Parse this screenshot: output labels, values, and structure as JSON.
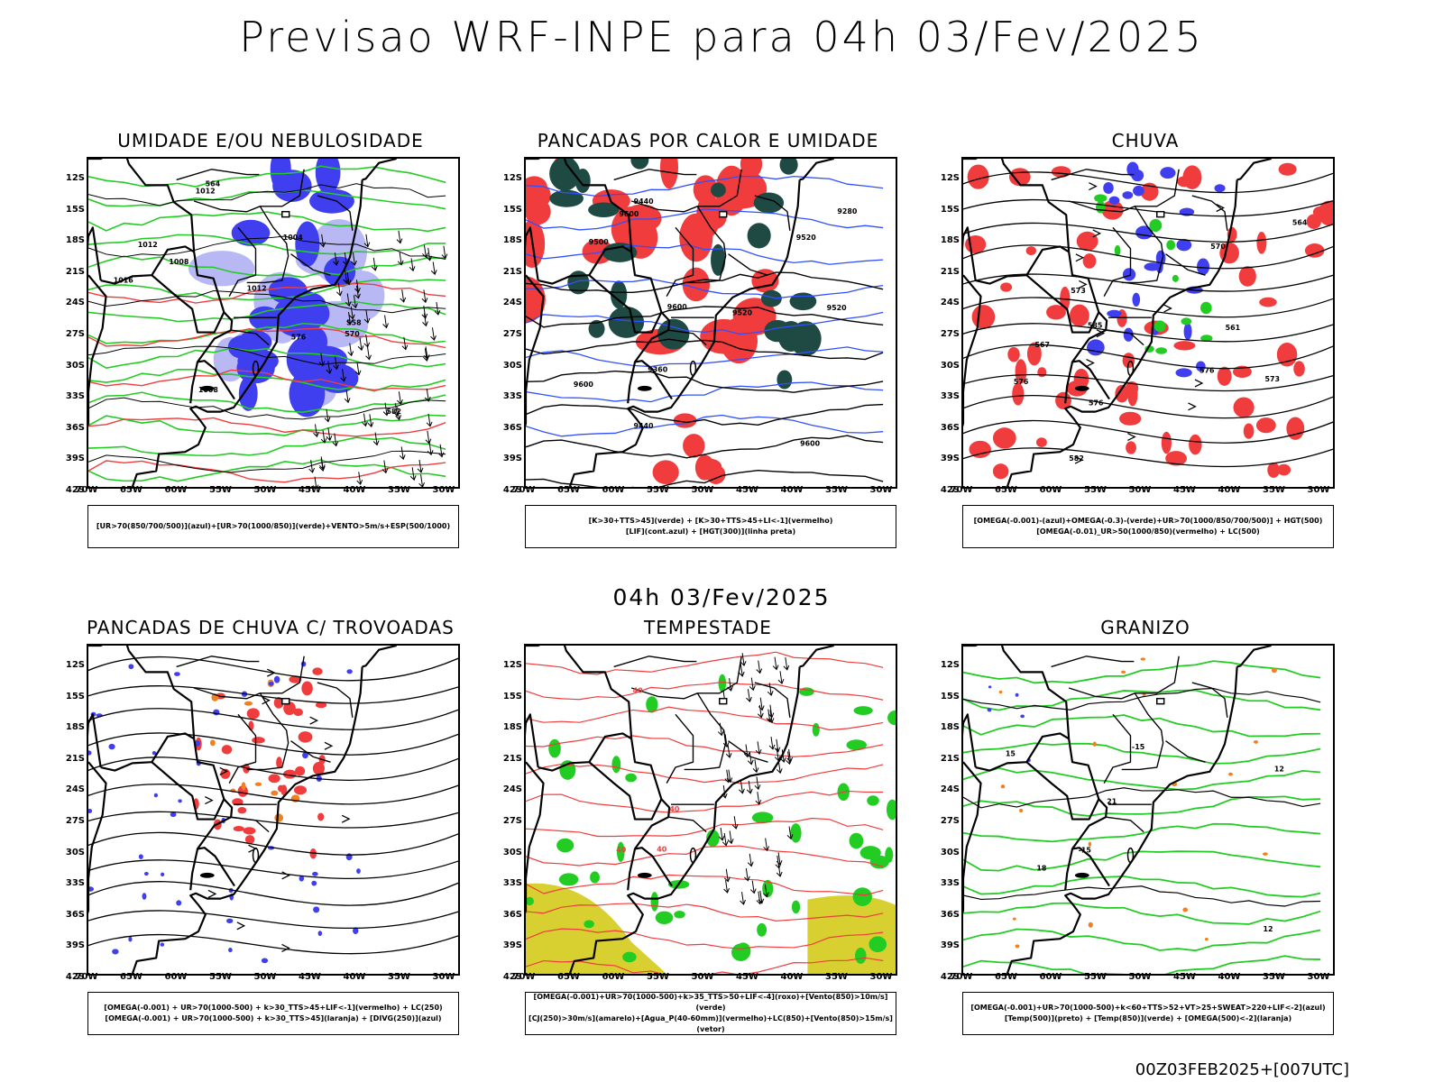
{
  "title": "Previsao WRF-INPE  para 04h 03/Fev/2025",
  "subtitle": "04h 03/Fev/2025",
  "footer": "00Z03FEB2025+[007UTC]",
  "axes": {
    "lat_labels": [
      "12S",
      "15S",
      "18S",
      "21S",
      "24S",
      "27S",
      "30S",
      "33S",
      "36S",
      "39S",
      "42S"
    ],
    "lon_labels": [
      "70W",
      "65W",
      "60W",
      "55W",
      "50W",
      "45W",
      "40W",
      "35W",
      "30W"
    ]
  },
  "panels": [
    {
      "title": "UMIDADE E/OU NEBULOSIDADE",
      "legend": [
        "[UR>70(850/700/500)](azul)+[UR>70(1000/850)](verde)+VENTO>5m/s+ESP(500/1000)"
      ],
      "contour_labels": [
        "1008",
        "1012",
        "1012",
        "1012",
        "1008",
        "1004",
        "1016",
        "576",
        "582",
        "570",
        "564",
        "558"
      ]
    },
    {
      "title": "PANCADAS POR CALOR E UMIDADE",
      "legend": [
        "[K>30+TTS>45](verde) + [K>30+TTS>45+LI<-1](vermelho)",
        "[LIF](cont.azul) + [HGT(300)](linha preta)"
      ],
      "contour_labels": [
        "9600",
        "9520",
        "9600",
        "9600",
        "9600",
        "9500",
        "9520",
        "9440",
        "9360",
        "9280",
        "9520",
        "9440"
      ]
    },
    {
      "title": "CHUVA",
      "legend": [
        "[OMEGA(-0.001)-(azul)+OMEGA(-0.3)-(verde)+UR>70(1000/850/700/500)] + HGT(500)",
        "[OMEGA(-0.01)_UR>50(1000/850)(vermelho) + LC(500)"
      ],
      "contour_labels": [
        "582",
        "576",
        "585",
        "576",
        "573",
        "570",
        "567",
        "564",
        "561",
        "576",
        "573"
      ]
    },
    {
      "title": "PANCADAS DE CHUVA C/ TROVOADAS",
      "legend": [
        "[OMEGA(-0.001) + UR>70(1000-500) + k>30_TTS>45+LIF<-1](vermelho) + LC(250)",
        "[OMEGA(-0.001) + UR>70(1000-500) + k>30_TTS>45](laranja) + [DIVG(250)](azul)"
      ],
      "contour_labels": []
    },
    {
      "title": "TEMPESTADE",
      "legend": [
        "[OMEGA(-0.001)+UR>70(1000-500)+k>35_TTS>50+LIF<-4](roxo)+[Vento(850)>10m/s](verde)",
        "[CJ(250)>30m/s](amarelo)+[Agua_P(40-60mm)](vermelho)+LC(850)+[Vento(850)>15m/s](vetor)"
      ],
      "contour_labels": [
        "40",
        "40",
        "40",
        "40"
      ]
    },
    {
      "title": "GRANIZO",
      "legend": [
        "[OMEGA(-0.001)+UR>70(1000-500)+k<60+TTS>52+VT>25+SWEAT>220+LIF<-2](azul)",
        "[Temp(500)](preto) + [Temp(850)](verde) + [OMEGA(500)<-2](laranja)"
      ],
      "contour_labels": [
        "21",
        "15",
        "18",
        "12",
        "-15",
        "-15",
        "12"
      ]
    }
  ],
  "colors": {
    "blue": "#3f3ff0",
    "light_blue": "#b8b8f5",
    "green": "#22cc22",
    "red": "#f03c3c",
    "dark_teal": "#1f4a44",
    "yellow": "#d8d030",
    "orange": "#f08020",
    "black": "#000000"
  }
}
